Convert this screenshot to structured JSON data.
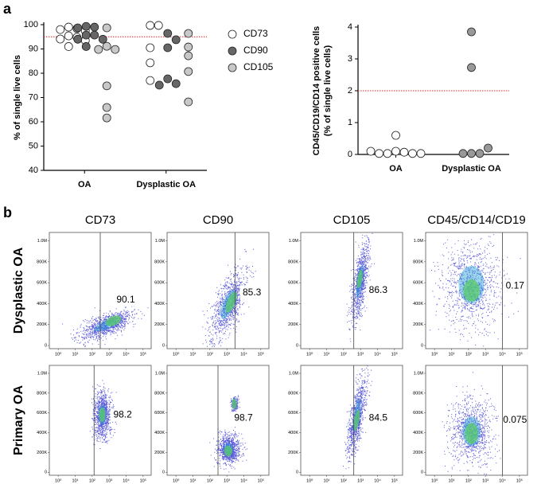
{
  "panel_labels": [
    "a",
    "b"
  ],
  "chart_data": [
    {
      "type": "strip",
      "categories": [
        "OA",
        "Dysplastic OA"
      ],
      "ylabel": "% of single live cells",
      "ylim": [
        40,
        100
      ],
      "yticks": [
        40,
        50,
        60,
        70,
        80,
        90,
        100
      ],
      "threshold": 95,
      "threshold_color": "#d62728",
      "legend": "right",
      "series": [
        {
          "name": "CD73",
          "color": "#ffffff",
          "values": [
            [
              99,
              98.4,
              98,
              97.5,
              95.4,
              94.8,
              94.1,
              93.5,
              91
            ],
            [
              99.7,
              99.7,
              90.5,
              84.3,
              77
            ]
          ]
        },
        {
          "name": "CD90",
          "color": "#666666",
          "values": [
            [
              99.3,
              99,
              98.7,
              95.7,
              95.7,
              94,
              94,
              91
            ],
            [
              96.4,
              93.8,
              90.5,
              77.7,
              75.7,
              75.1
            ]
          ]
        },
        {
          "name": "CD105",
          "color": "#c8c8c8",
          "values": [
            [
              98.7,
              91.1,
              89.8,
              89.8,
              74.8,
              65.9,
              61.6
            ],
            [
              96.4,
              90.8,
              87.2,
              80.7,
              68.2
            ]
          ]
        }
      ]
    },
    {
      "type": "strip",
      "categories": [
        "OA",
        "Dysplastic OA"
      ],
      "ylabel": [
        "CD45/CD19/CD14 positive cells",
        "(% of single live cells)"
      ],
      "ylim": [
        0,
        4
      ],
      "yticks": [
        0,
        1,
        2,
        3,
        4
      ],
      "threshold": 2,
      "threshold_color": "#d62728",
      "values": [
        [
          0.1,
          0.07,
          0.03,
          0.03,
          0.03,
          0.03,
          0.1,
          0.6
        ],
        [
          0.03,
          0.03,
          0.03,
          0.2,
          2.73,
          3.85
        ]
      ],
      "colors": [
        "#ffffff",
        "#999999"
      ]
    },
    {
      "type": "flow",
      "title": "CD73",
      "row_label": "Dysplastic OA",
      "gate": 300,
      "gate_value": 90.1,
      "xlim": [
        0.3,
        300000
      ],
      "xticks": [
        {
          "value": 1,
          "label": "10⁰"
        },
        {
          "value": 10,
          "label": "10¹"
        },
        {
          "value": 100,
          "label": "10²"
        },
        {
          "value": 1000,
          "label": "10³"
        },
        {
          "value": 10000,
          "label": "10⁴"
        },
        {
          "value": 100000,
          "label": "10⁵"
        }
      ],
      "ylim": [
        -30000,
        1080000
      ],
      "yticks": [
        0,
        {
          "value": 200000,
          "label": "200K"
        },
        {
          "value": 400000,
          "label": "400K"
        },
        {
          "value": 600000,
          "label": "600K"
        },
        {
          "value": 800000,
          "label": "800K"
        },
        {
          "value": 1000000,
          "label": "1.0M"
        }
      ]
    },
    {
      "type": "flow",
      "title": "CD90",
      "gate": 3000,
      "gate_value": 85.3,
      "xlim": [
        0.3,
        300000
      ],
      "xticks": [
        {
          "value": 1,
          "label": "10⁰"
        },
        {
          "value": 10,
          "label": "10¹"
        },
        {
          "value": 100,
          "label": "10²"
        },
        {
          "value": 1000,
          "label": "10³"
        },
        {
          "value": 10000,
          "label": "10⁴"
        },
        {
          "value": 100000,
          "label": "10⁵"
        }
      ],
      "ylim": [
        -30000,
        1080000
      ],
      "yticks": [
        0,
        {
          "value": 200000,
          "label": "200K"
        },
        {
          "value": 400000,
          "label": "400K"
        },
        {
          "value": 600000,
          "label": "600K"
        },
        {
          "value": 800000,
          "label": "800K"
        },
        {
          "value": 1000000,
          "label": "1.0M"
        }
      ]
    },
    {
      "type": "flow",
      "title": "CD105",
      "gate": 400,
      "gate_value": 86.3,
      "xlim": [
        0.3,
        300000
      ],
      "xticks": [
        {
          "value": 1,
          "label": "10⁰"
        },
        {
          "value": 10,
          "label": "10¹"
        },
        {
          "value": 100,
          "label": "10²"
        },
        {
          "value": 1000,
          "label": "10³"
        },
        {
          "value": 10000,
          "label": "10⁴"
        },
        {
          "value": 100000,
          "label": "10⁵"
        }
      ],
      "ylim": [
        -30000,
        1080000
      ],
      "yticks": [
        0,
        {
          "value": 200000,
          "label": "200K"
        },
        {
          "value": 400000,
          "label": "400K"
        },
        {
          "value": 600000,
          "label": "600K"
        },
        {
          "value": 800000,
          "label": "800K"
        },
        {
          "value": 1000000,
          "label": "1.0M"
        }
      ]
    },
    {
      "type": "flow",
      "title": "CD45/CD14/CD19",
      "gate": 10000,
      "gate_value": 0.17,
      "xlim": [
        0.3,
        300000
      ],
      "xticks": [
        {
          "value": 1,
          "label": "10⁰"
        },
        {
          "value": 10,
          "label": "10¹"
        },
        {
          "value": 100,
          "label": "10²"
        },
        {
          "value": 1000,
          "label": "10³"
        },
        {
          "value": 10000,
          "label": "10⁴"
        },
        {
          "value": 100000,
          "label": "10⁵"
        }
      ],
      "ylim": [
        -30000,
        1080000
      ],
      "yticks": [
        0,
        {
          "value": 200000,
          "label": "200K"
        },
        {
          "value": 400000,
          "label": "400K"
        },
        {
          "value": 600000,
          "label": "600K"
        },
        {
          "value": 800000,
          "label": "800K"
        },
        {
          "value": 1000000,
          "label": "1.0M"
        }
      ]
    },
    {
      "type": "flow",
      "row_label": "Primary  OA",
      "gate": 130,
      "gate_value": 98.2,
      "xlim": [
        0.3,
        300000
      ],
      "xticks": [
        {
          "value": 1,
          "label": "10⁰"
        },
        {
          "value": 10,
          "label": "10¹"
        },
        {
          "value": 100,
          "label": "10²"
        },
        {
          "value": 1000,
          "label": "10³"
        },
        {
          "value": 10000,
          "label": "10⁴"
        },
        {
          "value": 100000,
          "label": "10⁵"
        }
      ],
      "ylim": [
        -30000,
        1080000
      ],
      "yticks": [
        0,
        {
          "value": 200000,
          "label": "200K"
        },
        {
          "value": 400000,
          "label": "400K"
        },
        {
          "value": 600000,
          "label": "600K"
        },
        {
          "value": 800000,
          "label": "800K"
        },
        {
          "value": 1000000,
          "label": "1.0M"
        }
      ]
    },
    {
      "type": "flow",
      "gate": 300,
      "gate_value": 98.7,
      "xlim": [
        0.3,
        300000
      ],
      "xticks": [
        {
          "value": 1,
          "label": "10⁰"
        },
        {
          "value": 10,
          "label": "10¹"
        },
        {
          "value": 100,
          "label": "10²"
        },
        {
          "value": 1000,
          "label": "10³"
        },
        {
          "value": 10000,
          "label": "10⁴"
        },
        {
          "value": 100000,
          "label": "10⁵"
        }
      ],
      "ylim": [
        -30000,
        1080000
      ],
      "yticks": [
        0,
        {
          "value": 200000,
          "label": "200K"
        },
        {
          "value": 400000,
          "label": "400K"
        },
        {
          "value": 600000,
          "label": "600K"
        },
        {
          "value": 800000,
          "label": "800K"
        },
        {
          "value": 1000000,
          "label": "1.0M"
        }
      ]
    },
    {
      "type": "flow",
      "gate": 400,
      "gate_value": 84.5,
      "xlim": [
        0.3,
        300000
      ],
      "xticks": [
        {
          "value": 1,
          "label": "10⁰"
        },
        {
          "value": 10,
          "label": "10¹"
        },
        {
          "value": 100,
          "label": "10²"
        },
        {
          "value": 1000,
          "label": "10³"
        },
        {
          "value": 10000,
          "label": "10⁴"
        },
        {
          "value": 100000,
          "label": "10⁵"
        }
      ],
      "ylim": [
        -30000,
        1080000
      ],
      "yticks": [
        0,
        {
          "value": 200000,
          "label": "200K"
        },
        {
          "value": 400000,
          "label": "400K"
        },
        {
          "value": 600000,
          "label": "600K"
        },
        {
          "value": 800000,
          "label": "800K"
        },
        {
          "value": 1000000,
          "label": "1.0M"
        }
      ]
    },
    {
      "type": "flow",
      "gate": 10000,
      "gate_value": 0.075,
      "xlim": [
        0.3,
        300000
      ],
      "xticks": [
        {
          "value": 1,
          "label": "10⁰"
        },
        {
          "value": 10,
          "label": "10¹"
        },
        {
          "value": 100,
          "label": "10²"
        },
        {
          "value": 1000,
          "label": "10³"
        },
        {
          "value": 10000,
          "label": "10⁴"
        },
        {
          "value": 100000,
          "label": "10⁵"
        }
      ],
      "ylim": [
        -30000,
        1080000
      ],
      "yticks": [
        0,
        {
          "value": 200000,
          "label": "200K"
        },
        {
          "value": 400000,
          "label": "400K"
        },
        {
          "value": 600000,
          "label": "600K"
        },
        {
          "value": 800000,
          "label": "800K"
        },
        {
          "value": 1000000,
          "label": "1.0M"
        }
      ]
    }
  ]
}
